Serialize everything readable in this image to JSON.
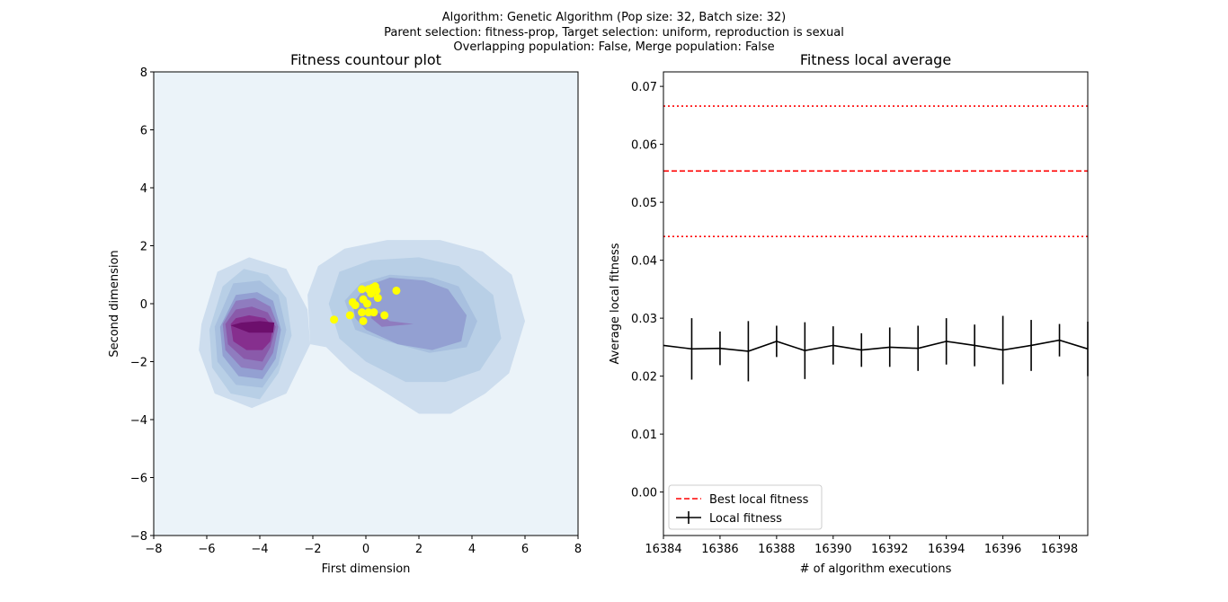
{
  "suptitle": [
    "Algorithm: Genetic Algorithm (Pop size: 32, Batch size: 32)",
    "Parent selection: fitness-prop, Target selection: uniform, reproduction is sexual",
    "Overlapping population: False, Merge population: False"
  ],
  "chart_data": [
    {
      "type": "contour",
      "title": "Fitness countour plot",
      "xlabel": "First dimension",
      "ylabel": "Second dimension",
      "xlim": [
        -8,
        8
      ],
      "ylim": [
        -8,
        8
      ],
      "xticks": [
        -8,
        -6,
        -4,
        -2,
        0,
        2,
        4,
        6,
        8
      ],
      "yticks": [
        -8,
        -6,
        -4,
        -2,
        0,
        2,
        4,
        6,
        8
      ],
      "background_color": "#ebf3f9",
      "contour_levels": [
        {
          "fill": "#cdddee",
          "regions": [
            [
              [
                -6.2,
                -0.7
              ],
              [
                -6.3,
                -1.6
              ],
              [
                -5.7,
                -3.1
              ],
              [
                -4.3,
                -3.6
              ],
              [
                -3.0,
                -3.1
              ],
              [
                -2.1,
                -1.4
              ],
              [
                -2.2,
                -0.2
              ],
              [
                -3.0,
                1.2
              ],
              [
                -4.4,
                1.6
              ],
              [
                -5.6,
                1.1
              ]
            ],
            [
              [
                -2.1,
                -1.4
              ],
              [
                -2.2,
                0.3
              ],
              [
                -1.8,
                1.3
              ],
              [
                -0.8,
                1.9
              ],
              [
                0.8,
                2.2
              ],
              [
                2.8,
                2.2
              ],
              [
                4.4,
                1.8
              ],
              [
                5.5,
                1.0
              ],
              [
                6.0,
                -0.6
              ],
              [
                5.4,
                -2.4
              ],
              [
                4.5,
                -3.1
              ],
              [
                3.2,
                -3.8
              ],
              [
                2.0,
                -3.8
              ],
              [
                0.8,
                -3.1
              ],
              [
                -0.6,
                -2.3
              ],
              [
                -1.5,
                -1.5
              ]
            ]
          ]
        },
        {
          "fill": "#b8cfe6",
          "regions": [
            [
              [
                -5.9,
                -0.9
              ],
              [
                -5.8,
                -2.2
              ],
              [
                -5.1,
                -3.1
              ],
              [
                -4.0,
                -3.3
              ],
              [
                -3.3,
                -2.4
              ],
              [
                -2.8,
                -1.1
              ],
              [
                -3.0,
                0.2
              ],
              [
                -3.7,
                1.0
              ],
              [
                -4.6,
                1.2
              ],
              [
                -5.4,
                0.6
              ]
            ],
            [
              [
                -1.4,
                0.0
              ],
              [
                -1.0,
                1.1
              ],
              [
                0.2,
                1.5
              ],
              [
                2.0,
                1.6
              ],
              [
                3.5,
                1.3
              ],
              [
                4.8,
                0.3
              ],
              [
                5.1,
                -1.2
              ],
              [
                4.3,
                -2.3
              ],
              [
                3.0,
                -2.7
              ],
              [
                1.5,
                -2.7
              ],
              [
                0.0,
                -2.0
              ],
              [
                -1.0,
                -1.2
              ]
            ]
          ]
        },
        {
          "fill": "#a8c0df",
          "regions": [
            [
              [
                -5.7,
                -0.8
              ],
              [
                -5.6,
                -2.0
              ],
              [
                -4.9,
                -2.8
              ],
              [
                -3.9,
                -2.9
              ],
              [
                -3.3,
                -2.1
              ],
              [
                -3.0,
                -0.9
              ],
              [
                -3.3,
                0.3
              ],
              [
                -4.0,
                0.8
              ],
              [
                -5.0,
                0.7
              ]
            ],
            [
              [
                -0.8,
                0.1
              ],
              [
                -0.2,
                0.7
              ],
              [
                0.9,
                1.0
              ],
              [
                2.5,
                0.9
              ],
              [
                3.5,
                0.6
              ],
              [
                4.2,
                -0.6
              ],
              [
                3.8,
                -1.5
              ],
              [
                2.4,
                -1.7
              ],
              [
                0.8,
                -1.3
              ],
              [
                -0.4,
                -0.9
              ]
            ]
          ]
        },
        {
          "fill": "#93a0d2",
          "regions": [
            [
              [
                -5.5,
                -0.8
              ],
              [
                -5.4,
                -1.8
              ],
              [
                -4.8,
                -2.5
              ],
              [
                -3.9,
                -2.6
              ],
              [
                -3.4,
                -1.9
              ],
              [
                -3.2,
                -0.9
              ],
              [
                -3.5,
                0.1
              ],
              [
                -4.1,
                0.4
              ],
              [
                -4.9,
                0.3
              ]
            ],
            [
              [
                -0.5,
                0.0
              ],
              [
                0.0,
                0.6
              ],
              [
                0.9,
                0.9
              ],
              [
                2.2,
                0.8
              ],
              [
                3.1,
                0.5
              ],
              [
                3.8,
                -0.4
              ],
              [
                3.6,
                -1.3
              ],
              [
                2.5,
                -1.6
              ],
              [
                1.2,
                -1.4
              ],
              [
                0.0,
                -0.9
              ],
              [
                -0.4,
                -0.5
              ]
            ]
          ]
        },
        {
          "fill": "#8f7cbf",
          "regions": [
            [
              [
                -5.4,
                -0.7
              ],
              [
                -5.3,
                -1.6
              ],
              [
                -4.7,
                -2.2
              ],
              [
                -3.9,
                -2.3
              ],
              [
                -3.5,
                -1.7
              ],
              [
                -3.3,
                -0.8
              ],
              [
                -3.6,
                -0.1
              ],
              [
                -4.2,
                0.2
              ],
              [
                -4.9,
                0.1
              ]
            ],
            [
              [
                0.3,
                -0.2
              ],
              [
                0.9,
                -0.6
              ],
              [
                1.8,
                -0.7
              ],
              [
                0.6,
                -0.8
              ],
              [
                0.2,
                -0.5
              ]
            ]
          ]
        },
        {
          "fill": "#8a5aaa",
          "regions": [
            [
              [
                -5.3,
                -0.7
              ],
              [
                -5.2,
                -1.4
              ],
              [
                -4.6,
                -1.9
              ],
              [
                -3.9,
                -2.0
              ],
              [
                -3.6,
                -1.5
              ],
              [
                -3.4,
                -0.8
              ],
              [
                -3.7,
                -0.3
              ],
              [
                -4.3,
                -0.1
              ],
              [
                -4.9,
                -0.2
              ]
            ]
          ]
        },
        {
          "fill": "#862f8e",
          "regions": [
            [
              [
                -5.1,
                -0.7
              ],
              [
                -5.0,
                -1.3
              ],
              [
                -4.5,
                -1.6
              ],
              [
                -3.9,
                -1.6
              ],
              [
                -3.6,
                -1.3
              ],
              [
                -3.5,
                -0.8
              ],
              [
                -3.8,
                -0.5
              ],
              [
                -4.4,
                -0.4
              ],
              [
                -4.9,
                -0.5
              ]
            ]
          ]
        },
        {
          "fill": "#6d0f6d",
          "regions": [
            [
              [
                -5.1,
                -0.75
              ],
              [
                -4.4,
                -1.0
              ],
              [
                -3.5,
                -1.0
              ],
              [
                -3.45,
                -0.65
              ],
              [
                -4.0,
                -0.6
              ],
              [
                -4.7,
                -0.65
              ]
            ]
          ]
        }
      ],
      "points_color": "#ffff00",
      "points": [
        {
          "x": -1.2,
          "y": -0.55
        },
        {
          "x": -0.6,
          "y": -0.4
        },
        {
          "x": -0.5,
          "y": 0.05
        },
        {
          "x": -0.4,
          "y": -0.05
        },
        {
          "x": -0.15,
          "y": 0.5
        },
        {
          "x": -0.15,
          "y": -0.3
        },
        {
          "x": -0.1,
          "y": 0.15
        },
        {
          "x": -0.1,
          "y": -0.6
        },
        {
          "x": 0.05,
          "y": 0.0
        },
        {
          "x": 0.1,
          "y": 0.5
        },
        {
          "x": 0.1,
          "y": -0.3
        },
        {
          "x": 0.2,
          "y": 0.35
        },
        {
          "x": 0.25,
          "y": 0.55
        },
        {
          "x": 0.3,
          "y": -0.3
        },
        {
          "x": 0.35,
          "y": 0.6
        },
        {
          "x": 0.4,
          "y": 0.45
        },
        {
          "x": 0.45,
          "y": 0.2
        },
        {
          "x": 0.7,
          "y": -0.4
        },
        {
          "x": 1.15,
          "y": 0.45
        }
      ]
    },
    {
      "type": "line",
      "title": "Fitness local average",
      "xlabel": "# of algorithm executions",
      "ylabel": "Average local fitness",
      "xlim": [
        16384,
        16399
      ],
      "ylim": [
        -0.0075,
        0.0725
      ],
      "xticks": [
        16384,
        16386,
        16388,
        16390,
        16392,
        16394,
        16396,
        16398
      ],
      "yticks": [
        0.0,
        0.01,
        0.02,
        0.03,
        0.04,
        0.05,
        0.06,
        0.07
      ],
      "ytick_labels": [
        "0.00",
        "0.01",
        "0.02",
        "0.03",
        "0.04",
        "0.05",
        "0.06",
        "0.07"
      ],
      "best": {
        "name": "Best local fitness",
        "color": "#ff0000",
        "value": 0.0554,
        "band": [
          0.0441,
          0.0666
        ]
      },
      "series": [
        {
          "name": "Local fitness",
          "color": "#000000",
          "x": [
            16384,
            16385,
            16386,
            16387,
            16388,
            16389,
            16390,
            16391,
            16392,
            16393,
            16394,
            16395,
            16396,
            16397,
            16398,
            16399
          ],
          "values": [
            0.0253,
            0.0247,
            0.0248,
            0.0243,
            0.026,
            0.0244,
            0.0253,
            0.0245,
            0.025,
            0.0248,
            0.026,
            0.0253,
            0.0245,
            0.0253,
            0.0262,
            0.0247
          ],
          "errors": [
            0.0,
            0.0053,
            0.0029,
            0.0052,
            0.0027,
            0.0049,
            0.0033,
            0.0029,
            0.0034,
            0.0039,
            0.004,
            0.0036,
            0.0059,
            0.0044,
            0.0028,
            0.0047
          ]
        }
      ],
      "legend_position": "lower-left"
    }
  ]
}
